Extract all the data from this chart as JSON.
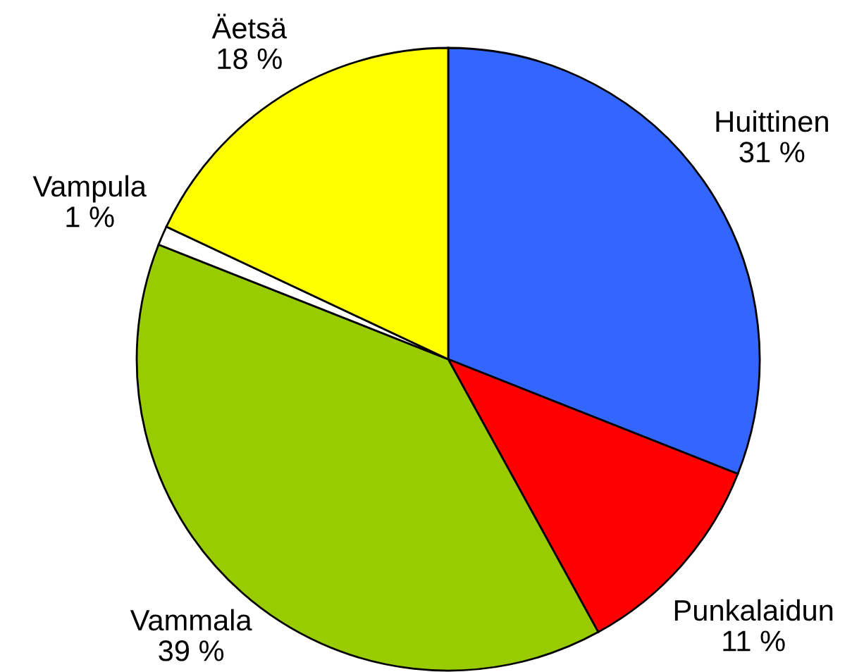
{
  "chart_data": {
    "type": "pie",
    "categories": [
      "Huittinen",
      "Punkalaidun",
      "Vammala",
      "Vampula",
      "Äetsä"
    ],
    "values": [
      31,
      11,
      39,
      1,
      18
    ],
    "colors": [
      "#3366ff",
      "#ff0000",
      "#99cc00",
      "#ffffff",
      "#ffff00"
    ],
    "value_labels": [
      "31 %",
      "11 %",
      "39 %",
      "1 %",
      "18 %"
    ]
  }
}
